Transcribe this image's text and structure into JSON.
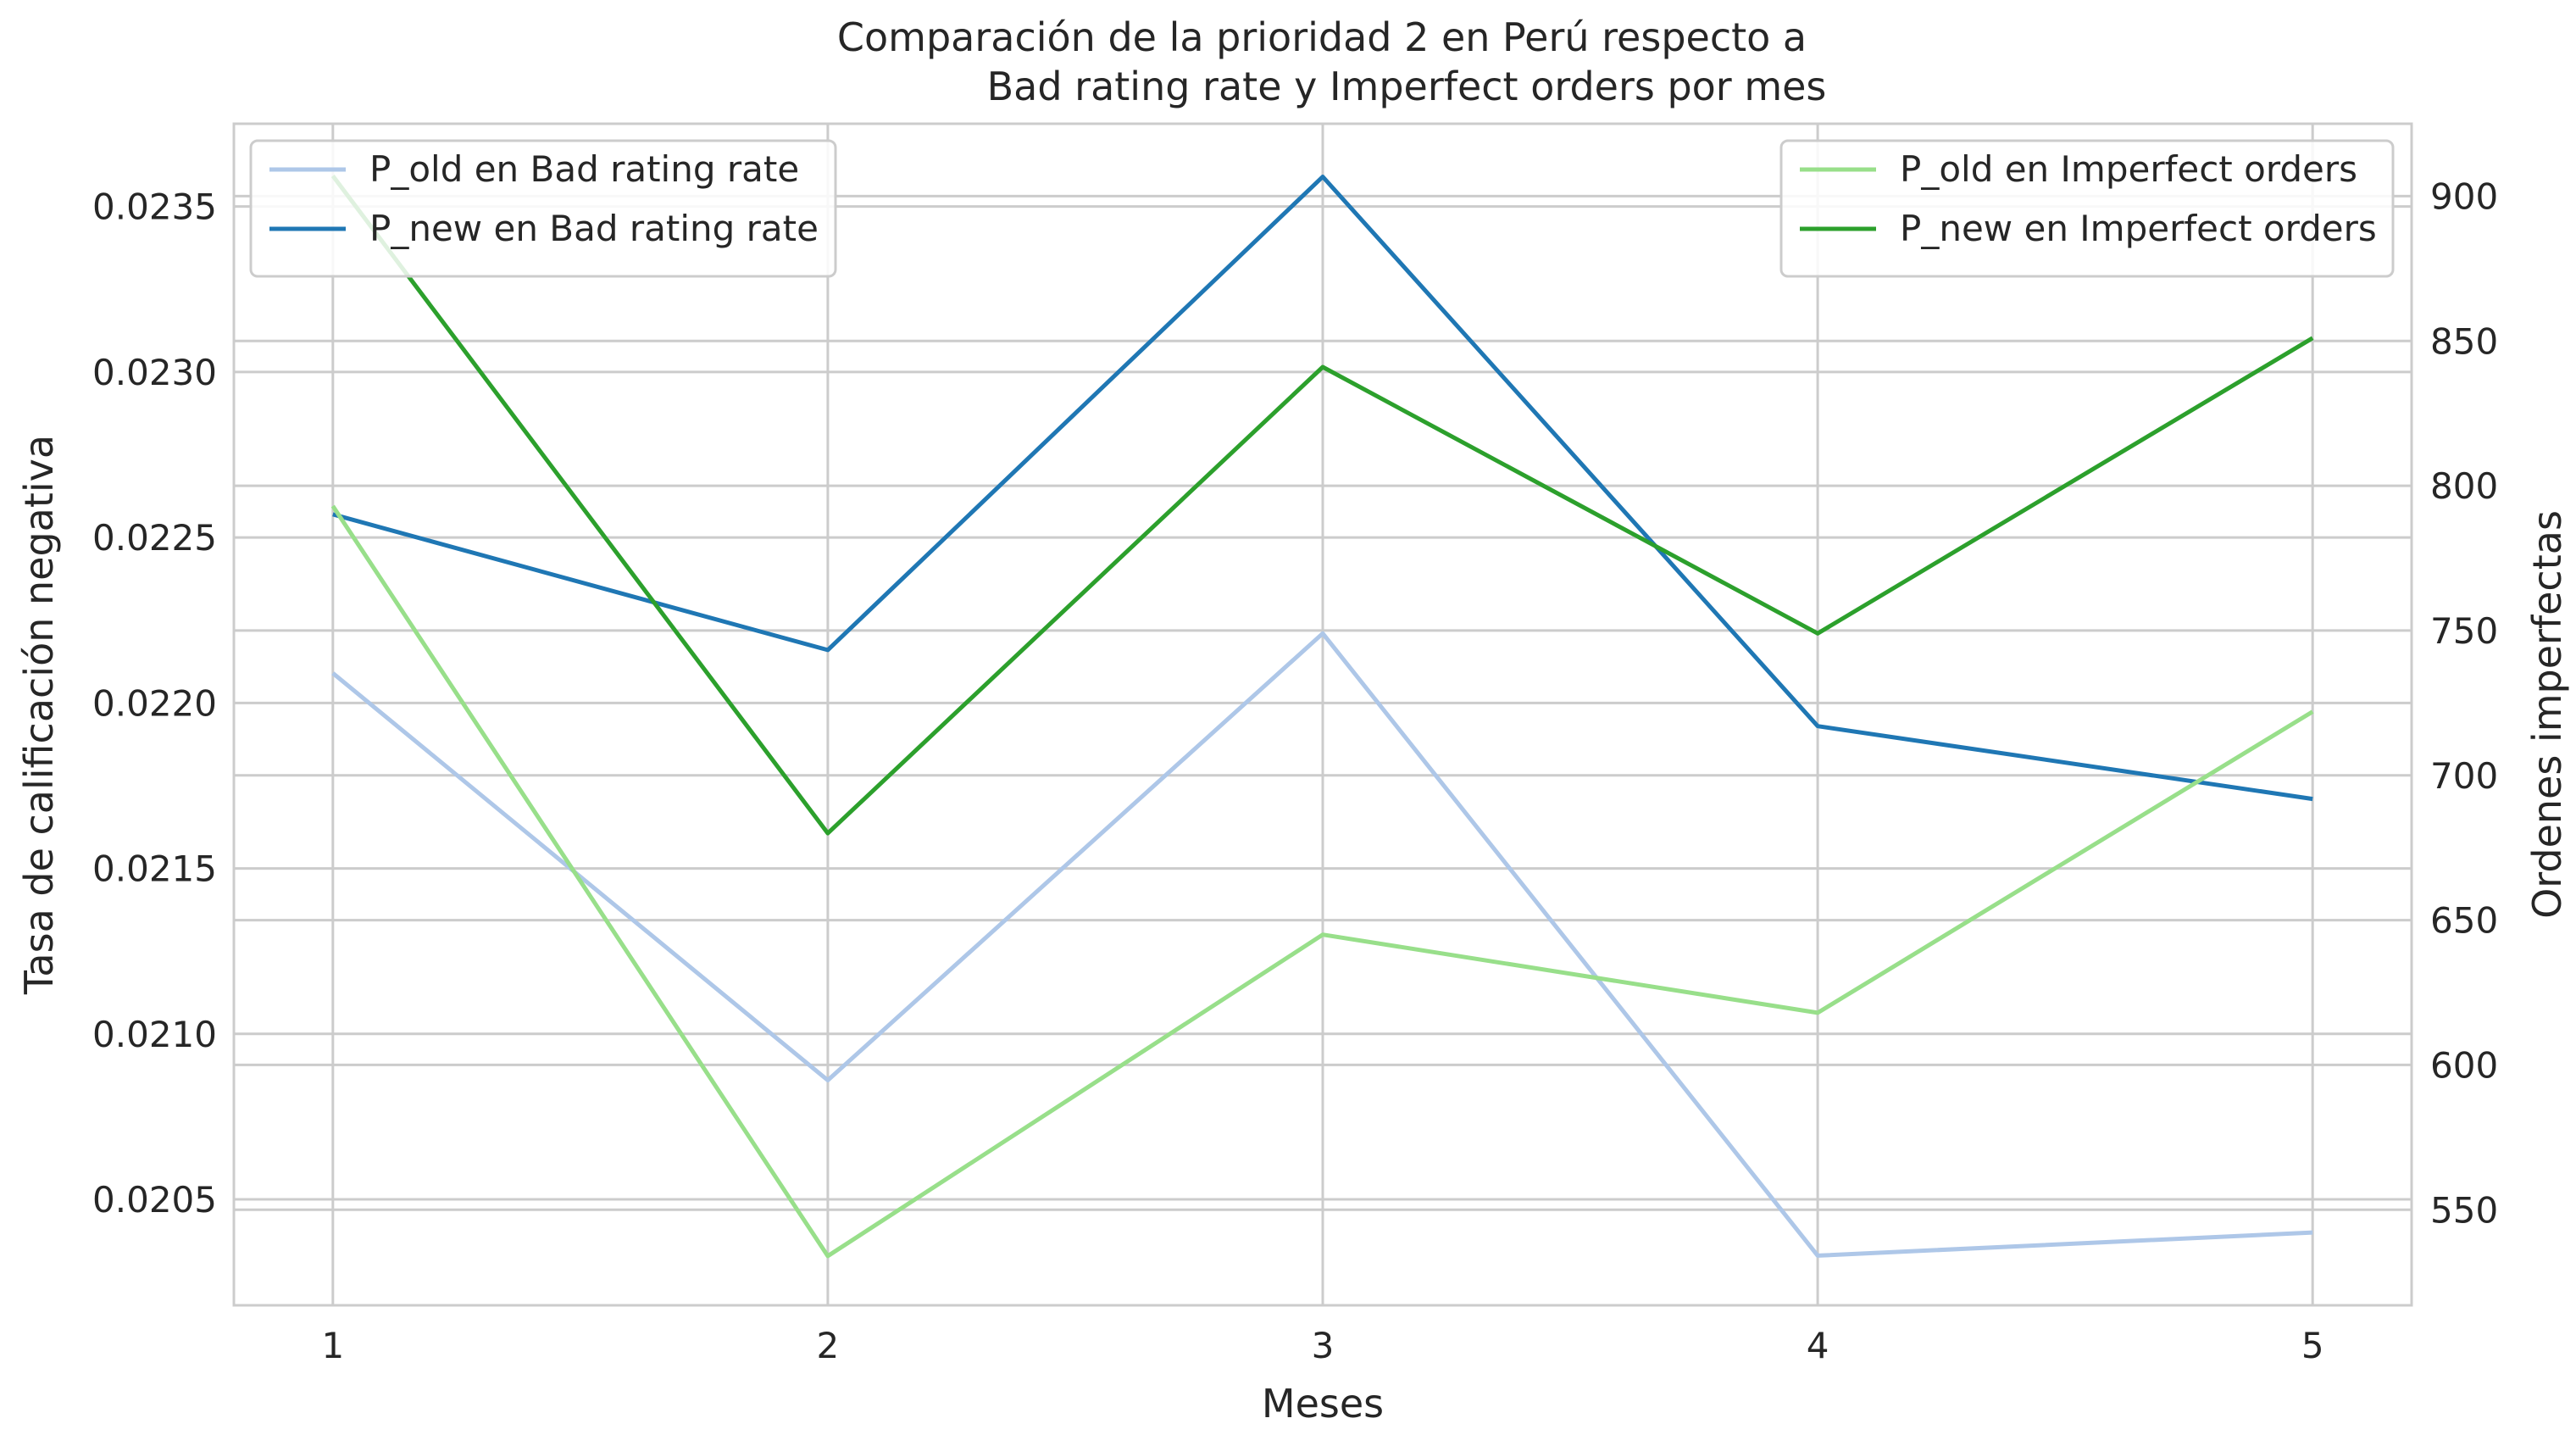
{
  "chart_data": {
    "type": "line",
    "title_lines": [
      "Comparación de la prioridad 2 en Perú respecto a",
      "Bad rating rate y Imperfect orders por mes"
    ],
    "xlabel": "Meses",
    "ylabel_left": "Tasa de calificación negativa",
    "ylabel_right": "Ordenes imperfectas",
    "x": [
      1,
      2,
      3,
      4,
      5
    ],
    "x_ticks": [
      "1",
      "2",
      "3",
      "4",
      "5"
    ],
    "xlim": [
      0.8,
      5.2
    ],
    "ylim_left": [
      0.02018,
      0.02375
    ],
    "ylim_right": [
      517,
      925
    ],
    "y_ticks_left": [
      "0.0205",
      "0.0210",
      "0.0215",
      "0.0220",
      "0.0225",
      "0.0230",
      "0.0235"
    ],
    "y_ticks_right": [
      "550",
      "600",
      "650",
      "700",
      "750",
      "800",
      "850",
      "900"
    ],
    "grid": true,
    "legend_left": "top-left",
    "legend_right": "top-right",
    "series": [
      {
        "name": "P_old en Bad rating rate",
        "axis": "left",
        "color": "#aec7e8",
        "values": [
          0.02209,
          0.02086,
          0.02221,
          0.02033,
          0.0204
        ]
      },
      {
        "name": "P_new en Bad rating rate",
        "axis": "left",
        "color": "#1f77b4",
        "values": [
          0.02257,
          0.02216,
          0.02359,
          0.02193,
          0.02171
        ]
      },
      {
        "name": "P_old en Imperfect orders",
        "axis": "right",
        "color": "#98df8a",
        "values": [
          793,
          534,
          645,
          618,
          722
        ]
      },
      {
        "name": "P_new en Imperfect orders",
        "axis": "right",
        "color": "#2ca02c",
        "values": [
          907,
          680,
          841,
          749,
          851
        ]
      }
    ]
  }
}
